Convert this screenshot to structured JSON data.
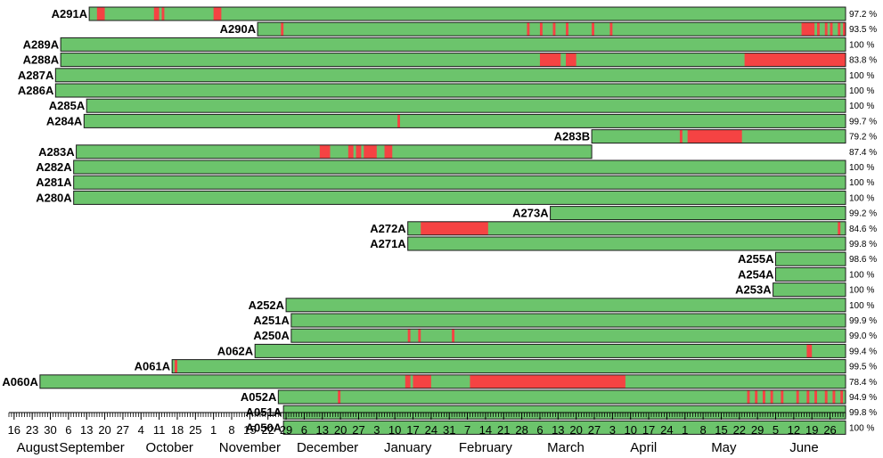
{
  "chart_data": {
    "type": "timeline",
    "title": "",
    "colors": {
      "ok": "#6cc46c",
      "gap": "#f54343",
      "border": "#1a1a1a"
    },
    "x_start": "2015-08-14",
    "x_end": "2016-07-02",
    "rows": [
      {
        "label": "A291A",
        "start": "2015-09-14",
        "end": "2016-07-02",
        "pct": "97.2 %",
        "gaps": [
          [
            "2015-09-17",
            "2015-09-20"
          ],
          [
            "2015-10-09",
            "2015-10-11"
          ],
          [
            "2015-10-12",
            "2015-10-13"
          ],
          [
            "2015-11-01",
            "2015-11-04"
          ]
        ]
      },
      {
        "label": "A290A",
        "start": "2015-11-18",
        "end": "2016-07-02",
        "pct": "93.5 %",
        "gaps": [
          [
            "2015-11-27",
            "2015-11-28"
          ],
          [
            "2016-03-01",
            "2016-03-02"
          ],
          [
            "2016-03-06",
            "2016-03-07"
          ],
          [
            "2016-03-11",
            "2016-03-12"
          ],
          [
            "2016-03-16",
            "2016-03-17"
          ],
          [
            "2016-03-26",
            "2016-03-27"
          ],
          [
            "2016-04-02",
            "2016-04-03"
          ],
          [
            "2016-06-15",
            "2016-06-20"
          ],
          [
            "2016-06-21",
            "2016-06-22"
          ],
          [
            "2016-06-24",
            "2016-06-25"
          ],
          [
            "2016-06-26",
            "2016-06-27"
          ],
          [
            "2016-06-29",
            "2016-06-30"
          ],
          [
            "2016-07-01",
            "2016-07-02"
          ]
        ]
      },
      {
        "label": "A289A",
        "start": "2015-09-03",
        "end": "2016-07-02",
        "pct": "100 %",
        "gaps": []
      },
      {
        "label": "A288A",
        "start": "2015-09-03",
        "end": "2016-07-02",
        "pct": "83.8 %",
        "gaps": [
          [
            "2016-03-06",
            "2016-03-14"
          ],
          [
            "2016-03-16",
            "2016-03-20"
          ],
          [
            "2016-05-24",
            "2016-07-02"
          ]
        ]
      },
      {
        "label": "A287A",
        "start": "2015-09-01",
        "end": "2016-07-02",
        "pct": "100 %",
        "gaps": []
      },
      {
        "label": "A286A",
        "start": "2015-09-01",
        "end": "2016-07-02",
        "pct": "100 %",
        "gaps": []
      },
      {
        "label": "A285A",
        "start": "2015-09-13",
        "end": "2016-07-02",
        "pct": "100 %",
        "gaps": []
      },
      {
        "label": "A284A",
        "start": "2015-09-12",
        "end": "2016-07-02",
        "pct": "99.7 %",
        "gaps": [
          [
            "2016-01-11",
            "2016-01-12"
          ]
        ]
      },
      {
        "label": "A283B",
        "start": "2016-03-26",
        "end": "2016-07-02",
        "pct": "79.2 %",
        "gaps": [
          [
            "2016-04-29",
            "2016-04-30"
          ],
          [
            "2016-05-12",
            "2016-05-02"
          ],
          [
            "2016-05-02",
            "2016-05-23"
          ]
        ]
      },
      {
        "label": "A283A",
        "start": "2015-09-09",
        "end": "2016-03-26",
        "pct": "87.4 %",
        "gaps": [
          [
            "2015-12-12",
            "2015-12-16"
          ],
          [
            "2015-12-23",
            "2015-12-25"
          ],
          [
            "2015-12-26",
            "2015-12-28"
          ],
          [
            "2015-12-29",
            "2016-01-03"
          ],
          [
            "2016-01-06",
            "2016-01-09"
          ]
        ]
      },
      {
        "label": "A282A",
        "start": "2015-09-08",
        "end": "2016-07-02",
        "pct": "100 %",
        "gaps": []
      },
      {
        "label": "A281A",
        "start": "2015-09-08",
        "end": "2016-07-02",
        "pct": "100 %",
        "gaps": []
      },
      {
        "label": "A280A",
        "start": "2015-09-08",
        "end": "2016-07-02",
        "pct": "100 %",
        "gaps": []
      },
      {
        "label": "A273A",
        "start": "2016-03-10",
        "end": "2016-07-02",
        "pct": "99.2 %",
        "gaps": []
      },
      {
        "label": "A272A",
        "start": "2016-01-15",
        "end": "2016-07-02",
        "pct": "84.6 %",
        "gaps": [
          [
            "2016-01-20",
            "2016-02-15"
          ],
          [
            "2016-06-29",
            "2016-06-30"
          ]
        ]
      },
      {
        "label": "A271A",
        "start": "2016-01-15",
        "end": "2016-07-02",
        "pct": "99.8 %",
        "gaps": []
      },
      {
        "label": "A255A",
        "start": "2016-06-05",
        "end": "2016-07-02",
        "pct": "98.6 %",
        "gaps": []
      },
      {
        "label": "A254A",
        "start": "2016-06-05",
        "end": "2016-07-02",
        "pct": "100 %",
        "gaps": []
      },
      {
        "label": "A253A",
        "start": "2016-06-04",
        "end": "2016-07-02",
        "pct": "100 %",
        "gaps": []
      },
      {
        "label": "A252A",
        "start": "2015-11-29",
        "end": "2016-07-02",
        "pct": "100 %",
        "gaps": []
      },
      {
        "label": "A251A",
        "start": "2015-12-01",
        "end": "2016-07-02",
        "pct": "99.9 %",
        "gaps": []
      },
      {
        "label": "A250A",
        "start": "2015-12-01",
        "end": "2016-07-02",
        "pct": "99.0 %",
        "gaps": [
          [
            "2016-01-15",
            "2016-01-16"
          ],
          [
            "2016-01-19",
            "2016-01-20"
          ],
          [
            "2016-02-01",
            "2016-02-02"
          ]
        ]
      },
      {
        "label": "A062A",
        "start": "2015-11-17",
        "end": "2016-07-02",
        "pct": "99.4 %",
        "gaps": [
          [
            "2016-06-17",
            "2016-06-19"
          ]
        ]
      },
      {
        "label": "A061A",
        "start": "2015-10-16",
        "end": "2016-07-02",
        "pct": "99.5 %",
        "gaps": [
          [
            "2015-10-17",
            "2015-10-18"
          ]
        ]
      },
      {
        "label": "A060A",
        "start": "2015-08-26",
        "end": "2016-07-02",
        "pct": "78.4 %",
        "gaps": [
          [
            "2016-01-14",
            "2016-01-16"
          ],
          [
            "2016-01-17",
            "2016-01-24"
          ],
          [
            "2016-02-08",
            "2016-04-08"
          ]
        ]
      },
      {
        "label": "A052A",
        "start": "2015-11-26",
        "end": "2016-07-02",
        "pct": "94.9 %",
        "gaps": [
          [
            "2015-12-19",
            "2015-12-20"
          ],
          [
            "2016-05-25",
            "2016-05-26"
          ],
          [
            "2016-05-28",
            "2016-05-29"
          ],
          [
            "2016-05-31",
            "2016-06-01"
          ],
          [
            "2016-06-03",
            "2016-06-04"
          ],
          [
            "2016-06-07",
            "2016-06-08"
          ],
          [
            "2016-06-13",
            "2016-06-14"
          ],
          [
            "2016-06-17",
            "2016-06-18"
          ],
          [
            "2016-06-20",
            "2016-06-21"
          ],
          [
            "2016-06-24",
            "2016-06-25"
          ],
          [
            "2016-06-27",
            "2016-06-28"
          ],
          [
            "2016-06-30",
            "2016-07-01"
          ]
        ]
      },
      {
        "label": "A051A",
        "start": "2015-11-28",
        "end": "2016-07-02",
        "pct": "99.8 %",
        "gaps": []
      },
      {
        "label": "A050A",
        "start": "2015-11-28",
        "end": "2016-07-02",
        "pct": "100 %",
        "gaps": []
      }
    ],
    "ticks": [
      {
        "date": "2015-08-16",
        "label": "16"
      },
      {
        "date": "2015-08-23",
        "label": "23"
      },
      {
        "date": "2015-08-30",
        "label": "30"
      },
      {
        "date": "2015-09-06",
        "label": "6"
      },
      {
        "date": "2015-09-13",
        "label": "13"
      },
      {
        "date": "2015-09-20",
        "label": "20"
      },
      {
        "date": "2015-09-27",
        "label": "27"
      },
      {
        "date": "2015-10-04",
        "label": "4"
      },
      {
        "date": "2015-10-11",
        "label": "11"
      },
      {
        "date": "2015-10-18",
        "label": "18"
      },
      {
        "date": "2015-10-25",
        "label": "25"
      },
      {
        "date": "2015-11-01",
        "label": "1"
      },
      {
        "date": "2015-11-08",
        "label": "8"
      },
      {
        "date": "2015-11-15",
        "label": "15"
      },
      {
        "date": "2015-11-22",
        "label": "22"
      },
      {
        "date": "2015-11-29",
        "label": "29"
      },
      {
        "date": "2015-12-06",
        "label": "6"
      },
      {
        "date": "2015-12-13",
        "label": "13"
      },
      {
        "date": "2015-12-20",
        "label": "20"
      },
      {
        "date": "2015-12-27",
        "label": "27"
      },
      {
        "date": "2016-01-03",
        "label": "3"
      },
      {
        "date": "2016-01-10",
        "label": "10"
      },
      {
        "date": "2016-01-17",
        "label": "17"
      },
      {
        "date": "2016-01-24",
        "label": "24"
      },
      {
        "date": "2016-01-31",
        "label": "31"
      },
      {
        "date": "2016-02-07",
        "label": "7"
      },
      {
        "date": "2016-02-14",
        "label": "14"
      },
      {
        "date": "2016-02-21",
        "label": "21"
      },
      {
        "date": "2016-02-28",
        "label": "28"
      },
      {
        "date": "2016-03-06",
        "label": "6"
      },
      {
        "date": "2016-03-13",
        "label": "13"
      },
      {
        "date": "2016-03-20",
        "label": "20"
      },
      {
        "date": "2016-03-27",
        "label": "27"
      },
      {
        "date": "2016-04-03",
        "label": "3"
      },
      {
        "date": "2016-04-10",
        "label": "10"
      },
      {
        "date": "2016-04-17",
        "label": "17"
      },
      {
        "date": "2016-04-24",
        "label": "24"
      },
      {
        "date": "2016-05-01",
        "label": "1"
      },
      {
        "date": "2016-05-08",
        "label": "8"
      },
      {
        "date": "2016-05-15",
        "label": "15"
      },
      {
        "date": "2016-05-22",
        "label": "22"
      },
      {
        "date": "2016-05-29",
        "label": "29"
      },
      {
        "date": "2016-06-05",
        "label": "5"
      },
      {
        "date": "2016-06-12",
        "label": "12"
      },
      {
        "date": "2016-06-19",
        "label": "19"
      },
      {
        "date": "2016-06-26",
        "label": "26"
      }
    ],
    "months": [
      {
        "date": "2015-08-25",
        "label": "August"
      },
      {
        "date": "2015-09-15",
        "label": "September"
      },
      {
        "date": "2015-10-15",
        "label": "October"
      },
      {
        "date": "2015-11-15",
        "label": "November"
      },
      {
        "date": "2015-12-15",
        "label": "December"
      },
      {
        "date": "2016-01-15",
        "label": "January"
      },
      {
        "date": "2016-02-14",
        "label": "February"
      },
      {
        "date": "2016-03-16",
        "label": "March"
      },
      {
        "date": "2016-04-15",
        "label": "April"
      },
      {
        "date": "2016-05-16",
        "label": "May"
      },
      {
        "date": "2016-06-16",
        "label": "June"
      }
    ]
  }
}
